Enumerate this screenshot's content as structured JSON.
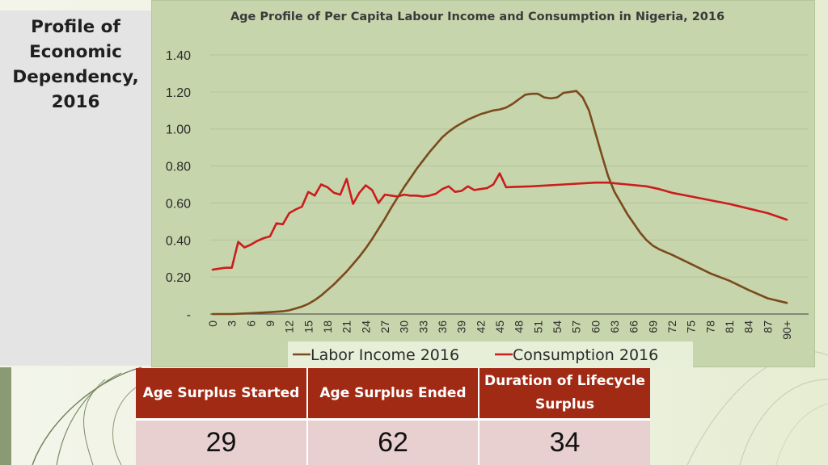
{
  "slide": {
    "title": "Profile of\nEconomic\nDependency,\n2016"
  },
  "chart_data": {
    "type": "line",
    "title": "Age Profile of Per Capita Labour Income and Consumption in Nigeria, 2016",
    "xlabel": "",
    "ylabel": "",
    "x_tick_labels": [
      "0",
      "3",
      "6",
      "9",
      "12",
      "15",
      "18",
      "21",
      "24",
      "27",
      "30",
      "33",
      "36",
      "39",
      "42",
      "45",
      "48",
      "51",
      "54",
      "57",
      "60",
      "63",
      "66",
      "69",
      "72",
      "75",
      "78",
      "81",
      "84",
      "87",
      "90+"
    ],
    "y_tick_labels": [
      "-",
      "0.20",
      "0.40",
      "0.60",
      "0.80",
      "1.00",
      "1.20",
      "1.40"
    ],
    "ylim": [
      0,
      1.4
    ],
    "grid": true,
    "legend_position": "bottom",
    "colors": {
      "Labor Income 2016": "#7b4a1c",
      "Consumption 2016": "#cc1c1c"
    },
    "series": [
      {
        "name": "Labor Income 2016",
        "x": [
          0,
          3,
          6,
          9,
          11,
          12,
          13,
          14,
          15,
          16,
          17,
          18,
          19,
          20,
          21,
          22,
          23,
          24,
          25,
          26,
          27,
          28,
          29,
          30,
          31,
          32,
          33,
          34,
          35,
          36,
          37,
          38,
          39,
          40,
          41,
          42,
          43,
          44,
          45,
          46,
          47,
          48,
          49,
          50,
          51,
          52,
          53,
          54,
          55,
          56,
          57,
          58,
          59,
          60,
          61,
          62,
          63,
          64,
          65,
          66,
          67,
          68,
          69,
          70,
          72,
          75,
          78,
          81,
          84,
          87,
          90
        ],
        "values": [
          0.0,
          0.0,
          0.005,
          0.01,
          0.015,
          0.02,
          0.03,
          0.04,
          0.055,
          0.075,
          0.1,
          0.13,
          0.16,
          0.195,
          0.23,
          0.27,
          0.31,
          0.355,
          0.405,
          0.46,
          0.515,
          0.575,
          0.63,
          0.685,
          0.735,
          0.785,
          0.83,
          0.875,
          0.915,
          0.955,
          0.985,
          1.01,
          1.03,
          1.05,
          1.065,
          1.08,
          1.09,
          1.1,
          1.105,
          1.115,
          1.135,
          1.16,
          1.185,
          1.19,
          1.19,
          1.17,
          1.165,
          1.17,
          1.195,
          1.2,
          1.205,
          1.17,
          1.1,
          0.98,
          0.86,
          0.745,
          0.66,
          0.6,
          0.54,
          0.49,
          0.44,
          0.4,
          0.37,
          0.35,
          0.32,
          0.27,
          0.22,
          0.18,
          0.13,
          0.085,
          0.06
        ]
      },
      {
        "name": "Consumption 2016",
        "x": [
          0,
          1,
          2,
          3,
          4,
          5,
          6,
          7,
          8,
          9,
          10,
          11,
          12,
          13,
          14,
          15,
          16,
          17,
          18,
          19,
          20,
          21,
          22,
          23,
          24,
          25,
          26,
          27,
          28,
          29,
          30,
          31,
          32,
          33,
          34,
          35,
          36,
          37,
          38,
          39,
          40,
          41,
          42,
          43,
          44,
          45,
          46,
          50,
          55,
          60,
          62,
          65,
          68,
          70,
          72,
          75,
          78,
          81,
          84,
          87,
          90
        ],
        "values": [
          0.24,
          0.245,
          0.25,
          0.25,
          0.39,
          0.36,
          0.375,
          0.395,
          0.41,
          0.42,
          0.49,
          0.485,
          0.545,
          0.565,
          0.58,
          0.66,
          0.64,
          0.7,
          0.685,
          0.655,
          0.645,
          0.73,
          0.595,
          0.655,
          0.695,
          0.67,
          0.6,
          0.645,
          0.64,
          0.635,
          0.645,
          0.64,
          0.64,
          0.635,
          0.64,
          0.65,
          0.675,
          0.69,
          0.66,
          0.665,
          0.69,
          0.67,
          0.675,
          0.68,
          0.7,
          0.76,
          0.685,
          0.69,
          0.7,
          0.71,
          0.71,
          0.7,
          0.69,
          0.675,
          0.655,
          0.635,
          0.615,
          0.595,
          0.57,
          0.545,
          0.51
        ]
      }
    ]
  },
  "table": {
    "headers": [
      "Age Surplus Started",
      "Age Surplus Ended",
      "Duration of Lifecycle Surplus"
    ],
    "values": [
      "29",
      "62",
      "34"
    ]
  }
}
